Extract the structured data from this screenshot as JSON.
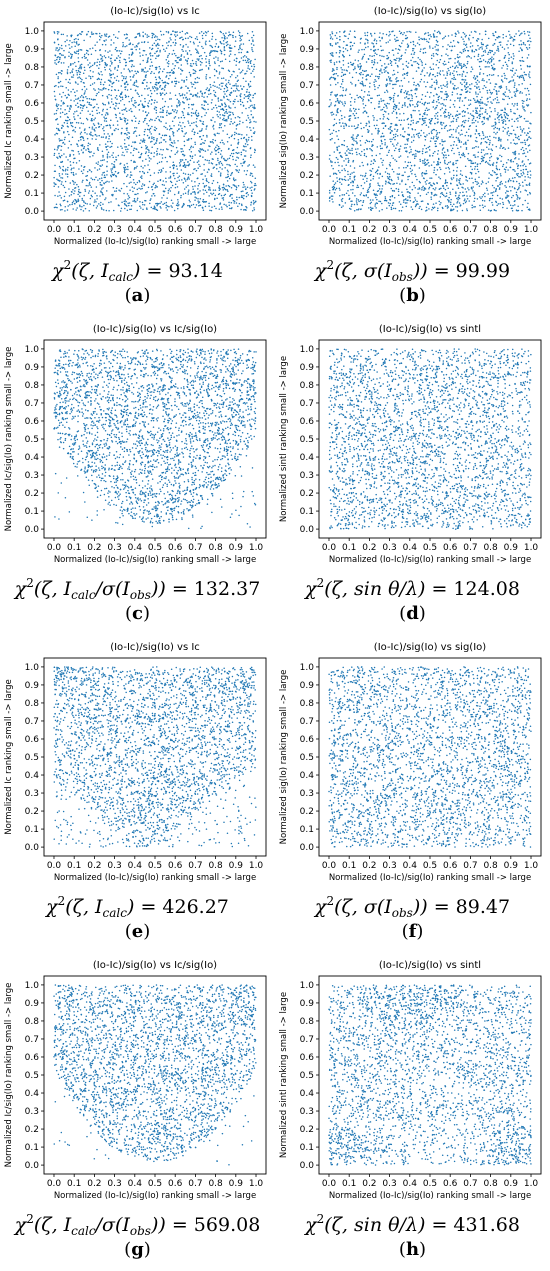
{
  "chart_data": [
    {
      "type": "scatter",
      "panel": "a",
      "title": "(Io-Ic)/sig(Io) vs Ic",
      "xlabel": "Normalized (Io-Ic)/sig(Io) ranking small -> large",
      "ylabel": "Normalized Ic ranking small -> large",
      "xlim": [
        0,
        1
      ],
      "ylim": [
        0,
        1
      ],
      "ticks": [
        "0.0",
        "0.1",
        "0.2",
        "0.3",
        "0.4",
        "0.5",
        "0.6",
        "0.7",
        "0.8",
        "0.9",
        "1.0"
      ],
      "distribution": "uniform",
      "color": "#1f77b4",
      "points_approx": 3000,
      "formula_main": "χ",
      "formula_args": "(ζ, I",
      "formula_sub": "calc",
      "formula_tail": ")",
      "formula_value": "= 93.14",
      "label_open": "(",
      "label": "a",
      "label_close": ")"
    },
    {
      "type": "scatter",
      "panel": "b",
      "title": "(Io-Ic)/sig(Io) vs sig(Io)",
      "xlabel": "Normalized (Io-Ic)/sig(Io) ranking small -> large",
      "ylabel": "Normalized sig(Io) ranking small -> large",
      "xlim": [
        0,
        1
      ],
      "ylim": [
        0,
        1
      ],
      "ticks": [
        "0.0",
        "0.1",
        "0.2",
        "0.3",
        "0.4",
        "0.5",
        "0.6",
        "0.7",
        "0.8",
        "0.9",
        "1.0"
      ],
      "distribution": "uniform",
      "color": "#1f77b4",
      "points_approx": 3000,
      "formula_main": "χ",
      "formula_args": "(ζ, σ(I",
      "formula_sub": "obs",
      "formula_tail": "))",
      "formula_value": "= 99.99",
      "label_open": "(",
      "label": "b",
      "label_close": ")"
    },
    {
      "type": "scatter",
      "panel": "c",
      "title": "(Io-Ic)/sig(Io) vs Ic/sig(Io)",
      "xlabel": "Normalized (Io-Ic)/sig(Io) ranking small -> large",
      "ylabel": "Normalized Ic/sig(Io) ranking small -> large",
      "xlim": [
        0,
        1
      ],
      "ylim": [
        0,
        1
      ],
      "ticks": [
        "0.0",
        "0.1",
        "0.2",
        "0.3",
        "0.4",
        "0.5",
        "0.6",
        "0.7",
        "0.8",
        "0.9",
        "1.0"
      ],
      "distribution": "u-shaped-bottom",
      "color": "#1f77b4",
      "points_approx": 3000,
      "formula_main": "χ",
      "formula_args": "(ζ, I",
      "formula_sub": "calc",
      "formula_tail": "/σ(I",
      "formula_sub2": "obs",
      "formula_tail2": "))",
      "formula_value": "= 132.37",
      "label_open": "(",
      "label": "c",
      "label_close": ")"
    },
    {
      "type": "scatter",
      "panel": "d",
      "title": "(Io-Ic)/sig(Io) vs sintl",
      "xlabel": "Normalized (Io-Ic)/sig(Io) ranking small -> large",
      "ylabel": "Normalized sintl ranking small -> large",
      "xlim": [
        0,
        1
      ],
      "ylim": [
        0,
        1
      ],
      "ticks": [
        "0.0",
        "0.1",
        "0.2",
        "0.3",
        "0.4",
        "0.5",
        "0.6",
        "0.7",
        "0.8",
        "0.9",
        "1.0"
      ],
      "distribution": "uniform",
      "color": "#1f77b4",
      "points_approx": 3000,
      "formula_main": "χ",
      "formula_args": "(ζ, sin θ/λ)",
      "formula_value": "= 124.08",
      "label_open": "(",
      "label": "d",
      "label_close": ")"
    },
    {
      "type": "scatter",
      "panel": "e",
      "title": "(Io-Ic)/sig(Io) vs Ic",
      "xlabel": "Normalized (Io-Ic)/sig(Io) ranking small -> large",
      "ylabel": "Normalized Ic ranking small -> large",
      "xlim": [
        0,
        1
      ],
      "ylim": [
        0,
        1
      ],
      "ticks": [
        "0.0",
        "0.1",
        "0.2",
        "0.3",
        "0.4",
        "0.5",
        "0.6",
        "0.7",
        "0.8",
        "0.9",
        "1.0"
      ],
      "distribution": "v-shaped",
      "color": "#1f77b4",
      "points_approx": 3000,
      "formula_main": "χ",
      "formula_args": "(ζ, I",
      "formula_sub": "calc",
      "formula_tail": ")",
      "formula_value": "= 426.27",
      "label_open": "(",
      "label": "e",
      "label_close": ")"
    },
    {
      "type": "scatter",
      "panel": "f",
      "title": "(Io-Ic)/sig(Io) vs sig(Io)",
      "xlabel": "Normalized (Io-Ic)/sig(Io) ranking small -> large",
      "ylabel": "Normalized sig(Io) ranking small -> large",
      "xlim": [
        0,
        1
      ],
      "ylim": [
        0,
        1
      ],
      "ticks": [
        "0.0",
        "0.1",
        "0.2",
        "0.3",
        "0.4",
        "0.5",
        "0.6",
        "0.7",
        "0.8",
        "0.9",
        "1.0"
      ],
      "distribution": "uniform",
      "color": "#1f77b4",
      "points_approx": 3000,
      "formula_main": "χ",
      "formula_args": "(ζ, σ(I",
      "formula_sub": "obs",
      "formula_tail": "))",
      "formula_value": "= 89.47",
      "label_open": "(",
      "label": "f",
      "label_close": ")"
    },
    {
      "type": "scatter",
      "panel": "g",
      "title": "(Io-Ic)/sig(Io) vs Ic/sig(Io)",
      "xlabel": "Normalized (Io-Ic)/sig(Io) ranking small -> large",
      "ylabel": "Normalized Ic/sig(Io) ranking small -> large",
      "xlim": [
        0,
        1
      ],
      "ylim": [
        0,
        1
      ],
      "ticks": [
        "0.0",
        "0.1",
        "0.2",
        "0.3",
        "0.4",
        "0.5",
        "0.6",
        "0.7",
        "0.8",
        "0.9",
        "1.0"
      ],
      "distribution": "u-shaped-strong",
      "color": "#1f77b4",
      "points_approx": 3000,
      "formula_main": "χ",
      "formula_args": "(ζ, I",
      "formula_sub": "calc",
      "formula_tail": "/σ(I",
      "formula_sub2": "obs",
      "formula_tail2": "))",
      "formula_value": "= 569.08",
      "label_open": "(",
      "label": "g",
      "label_close": ")"
    },
    {
      "type": "scatter",
      "panel": "h",
      "title": "(Io-Ic)/sig(Io) vs sintl",
      "xlabel": "Normalized (Io-Ic)/sig(Io) ranking small -> large",
      "ylabel": "Normalized sintl ranking small -> large",
      "xlim": [
        0,
        1
      ],
      "ylim": [
        0,
        1
      ],
      "ticks": [
        "0.0",
        "0.1",
        "0.2",
        "0.3",
        "0.4",
        "0.5",
        "0.6",
        "0.7",
        "0.8",
        "0.9",
        "1.0"
      ],
      "distribution": "corners",
      "color": "#1f77b4",
      "points_approx": 3000,
      "formula_main": "χ",
      "formula_args": "(ζ, sin θ/λ)",
      "formula_value": "= 431.68",
      "label_open": "(",
      "label": "h",
      "label_close": ")"
    }
  ]
}
